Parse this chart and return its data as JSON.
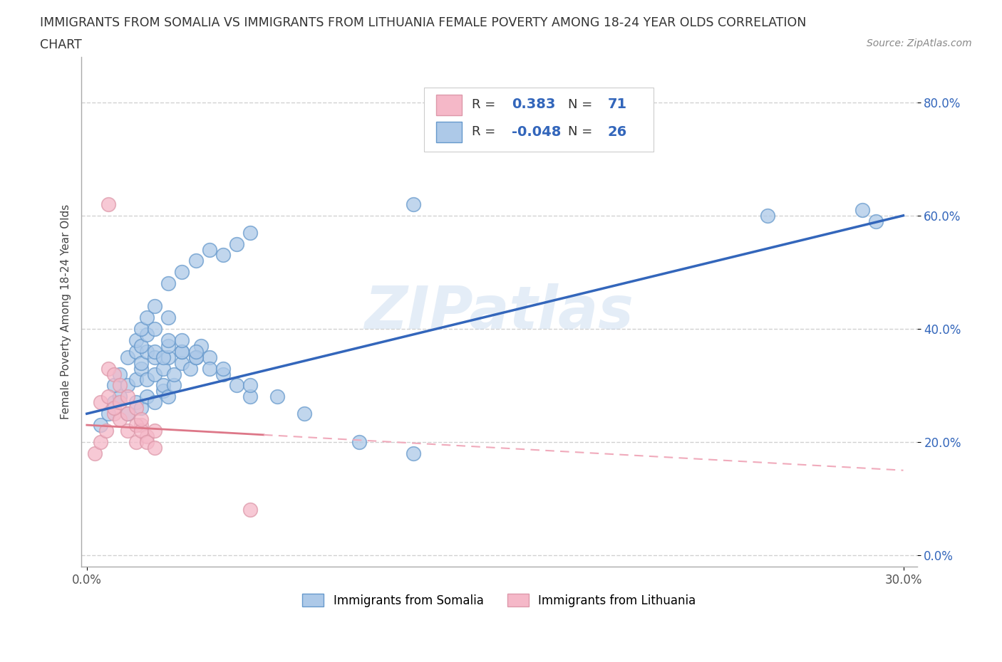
{
  "title_line1": "IMMIGRANTS FROM SOMALIA VS IMMIGRANTS FROM LITHUANIA FEMALE POVERTY AMONG 18-24 YEAR OLDS CORRELATION",
  "title_line2": "CHART",
  "source_text": "Source: ZipAtlas.com",
  "watermark": "ZIPatlas",
  "ylabel": "Female Poverty Among 18-24 Year Olds",
  "xlim": [
    -0.002,
    0.305
  ],
  "ylim": [
    -0.02,
    0.88
  ],
  "xticks": [
    0.0,
    0.3
  ],
  "yticks": [
    0.0,
    0.2,
    0.4,
    0.6,
    0.8
  ],
  "xtick_labels_sparse": [
    "0.0%",
    "30.0%"
  ],
  "ytick_labels": [
    "0.0%",
    "20.0%",
    "40.0%",
    "60.0%",
    "80.0%"
  ],
  "somalia_color": "#adc9e8",
  "somalia_edge_color": "#6699cc",
  "lithuania_color": "#f5b8c8",
  "lithuania_edge_color": "#dd99aa",
  "somalia_line_color": "#3366bb",
  "lithuania_line_solid_color": "#dd7788",
  "lithuania_line_dash_color": "#f0aabb",
  "R_somalia": 0.383,
  "N_somalia": 71,
  "R_lithuania": -0.048,
  "N_lithuania": 26,
  "legend_somalia": "Immigrants from Somalia",
  "legend_lithuania": "Immigrants from Lithuania",
  "somalia_x": [
    0.005,
    0.008,
    0.01,
    0.012,
    0.015,
    0.018,
    0.02,
    0.022,
    0.025,
    0.028,
    0.01,
    0.012,
    0.015,
    0.018,
    0.02,
    0.022,
    0.025,
    0.028,
    0.03,
    0.032,
    0.015,
    0.018,
    0.02,
    0.022,
    0.025,
    0.028,
    0.03,
    0.032,
    0.035,
    0.038,
    0.018,
    0.02,
    0.022,
    0.025,
    0.028,
    0.03,
    0.035,
    0.04,
    0.042,
    0.045,
    0.02,
    0.022,
    0.025,
    0.03,
    0.035,
    0.04,
    0.045,
    0.05,
    0.055,
    0.06,
    0.025,
    0.03,
    0.035,
    0.04,
    0.05,
    0.06,
    0.07,
    0.08,
    0.1,
    0.12,
    0.03,
    0.035,
    0.04,
    0.045,
    0.05,
    0.055,
    0.06,
    0.12,
    0.25,
    0.285,
    0.29
  ],
  "somalia_y": [
    0.23,
    0.25,
    0.27,
    0.28,
    0.25,
    0.27,
    0.26,
    0.28,
    0.27,
    0.29,
    0.3,
    0.32,
    0.3,
    0.31,
    0.33,
    0.31,
    0.32,
    0.3,
    0.28,
    0.3,
    0.35,
    0.36,
    0.34,
    0.36,
    0.35,
    0.33,
    0.35,
    0.32,
    0.34,
    0.33,
    0.38,
    0.37,
    0.39,
    0.36,
    0.35,
    0.37,
    0.36,
    0.35,
    0.37,
    0.35,
    0.4,
    0.42,
    0.4,
    0.38,
    0.36,
    0.35,
    0.33,
    0.32,
    0.3,
    0.28,
    0.44,
    0.42,
    0.38,
    0.36,
    0.33,
    0.3,
    0.28,
    0.25,
    0.2,
    0.18,
    0.48,
    0.5,
    0.52,
    0.54,
    0.53,
    0.55,
    0.57,
    0.62,
    0.6,
    0.61,
    0.59
  ],
  "lithuania_x": [
    0.003,
    0.005,
    0.007,
    0.01,
    0.012,
    0.015,
    0.018,
    0.02,
    0.022,
    0.005,
    0.008,
    0.01,
    0.012,
    0.015,
    0.018,
    0.02,
    0.022,
    0.025,
    0.008,
    0.01,
    0.012,
    0.015,
    0.018,
    0.02,
    0.025,
    0.06
  ],
  "lithuania_y": [
    0.18,
    0.2,
    0.22,
    0.25,
    0.24,
    0.22,
    0.2,
    0.23,
    0.21,
    0.27,
    0.28,
    0.26,
    0.27,
    0.25,
    0.23,
    0.22,
    0.2,
    0.19,
    0.33,
    0.32,
    0.3,
    0.28,
    0.26,
    0.24,
    0.22,
    0.08
  ],
  "background_color": "#ffffff",
  "grid_color": "#cccccc"
}
